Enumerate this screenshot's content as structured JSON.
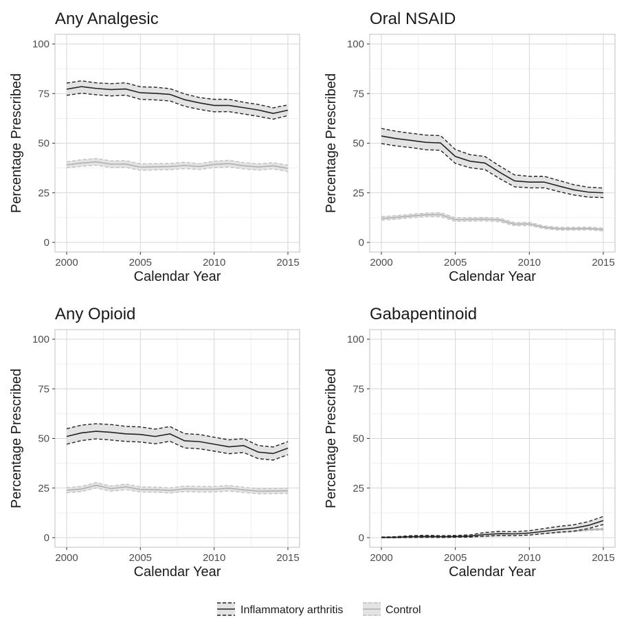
{
  "chart_data": [
    {
      "type": "line",
      "title": "Any Analgesic",
      "xlabel": "Calendar Year",
      "ylabel": "Percentage Prescribed",
      "xlim": [
        2000,
        2015
      ],
      "ylim": [
        0,
        100
      ],
      "xticks": [
        2000,
        2005,
        2010,
        2015
      ],
      "yticks": [
        0,
        25,
        50,
        75,
        100
      ],
      "x": [
        2000,
        2001,
        2002,
        2003,
        2004,
        2005,
        2006,
        2007,
        2008,
        2009,
        2010,
        2011,
        2012,
        2013,
        2014,
        2015
      ],
      "grid": true,
      "series": [
        {
          "name": "Inflammatory arthritis",
          "values": [
            77.2,
            78.5,
            77.6,
            77.0,
            77.3,
            75.4,
            75.1,
            74.6,
            71.9,
            70.3,
            69.0,
            69.0,
            67.9,
            66.7,
            65.0,
            66.6
          ],
          "lower": [
            74.1,
            75.2,
            74.4,
            73.8,
            74.2,
            72.1,
            71.8,
            71.3,
            68.6,
            67.0,
            65.8,
            65.9,
            64.7,
            63.5,
            62.1,
            63.9
          ],
          "upper": [
            80.3,
            81.4,
            80.4,
            80.0,
            80.4,
            78.4,
            78.2,
            77.5,
            74.8,
            73.0,
            72.1,
            72.1,
            70.6,
            69.5,
            67.8,
            69.3
          ]
        },
        {
          "name": "Control",
          "values": [
            39.1,
            40.0,
            40.6,
            39.4,
            39.5,
            37.9,
            38.1,
            38.2,
            38.8,
            38.2,
            39.3,
            39.7,
            38.6,
            38.0,
            38.6,
            37.3
          ],
          "lower": [
            37.6,
            38.3,
            38.9,
            37.7,
            37.8,
            36.3,
            36.5,
            36.6,
            37.2,
            36.7,
            37.7,
            38.0,
            37.0,
            36.4,
            37.0,
            35.7
          ],
          "upper": [
            40.6,
            41.7,
            42.3,
            41.1,
            41.2,
            39.6,
            39.7,
            39.8,
            40.4,
            39.7,
            40.9,
            41.4,
            40.2,
            39.6,
            40.2,
            38.9
          ]
        }
      ]
    },
    {
      "type": "line",
      "title": "Oral NSAID",
      "xlabel": "Calendar Year",
      "ylabel": "Percentage Prescribed",
      "xlim": [
        2000,
        2015
      ],
      "ylim": [
        0,
        100
      ],
      "xticks": [
        2000,
        2005,
        2010,
        2015
      ],
      "yticks": [
        0,
        25,
        50,
        75,
        100
      ],
      "x": [
        2000,
        2001,
        2002,
        2003,
        2004,
        2005,
        2006,
        2007,
        2008,
        2009,
        2010,
        2011,
        2012,
        2013,
        2014,
        2015
      ],
      "grid": true,
      "series": [
        {
          "name": "Inflammatory arthritis",
          "values": [
            53.6,
            52.3,
            51.4,
            50.4,
            50.1,
            43.3,
            40.9,
            40.0,
            35.3,
            31.0,
            30.4,
            30.4,
            28.4,
            26.5,
            25.3,
            25.0
          ],
          "lower": [
            49.8,
            48.6,
            47.8,
            46.7,
            46.4,
            39.8,
            37.6,
            36.7,
            32.1,
            28.0,
            27.5,
            27.5,
            25.6,
            23.9,
            22.8,
            22.6
          ],
          "upper": [
            57.4,
            56.0,
            55.0,
            54.1,
            53.8,
            46.8,
            44.2,
            43.3,
            38.5,
            34.0,
            33.3,
            33.3,
            31.2,
            29.1,
            27.8,
            27.4
          ]
        },
        {
          "name": "Control",
          "values": [
            12.1,
            12.6,
            13.3,
            13.9,
            14.0,
            11.5,
            11.6,
            11.7,
            11.3,
            9.2,
            9.3,
            7.6,
            6.9,
            6.9,
            7.0,
            6.5
          ],
          "lower": [
            11.2,
            11.7,
            12.4,
            13.0,
            13.0,
            10.6,
            10.7,
            10.8,
            10.4,
            8.4,
            8.5,
            6.9,
            6.2,
            6.2,
            6.3,
            5.8
          ],
          "upper": [
            13.0,
            13.5,
            14.2,
            14.8,
            15.0,
            12.4,
            12.5,
            12.6,
            12.2,
            10.0,
            10.1,
            8.3,
            7.6,
            7.6,
            7.7,
            7.2
          ]
        }
      ]
    },
    {
      "type": "line",
      "title": "Any Opioid",
      "xlabel": "Calendar Year",
      "ylabel": "Percentage Prescribed",
      "xlim": [
        2000,
        2015
      ],
      "ylim": [
        0,
        100
      ],
      "xticks": [
        2000,
        2005,
        2010,
        2015
      ],
      "yticks": [
        0,
        25,
        50,
        75,
        100
      ],
      "x": [
        2000,
        2001,
        2002,
        2003,
        2004,
        2005,
        2006,
        2007,
        2008,
        2009,
        2010,
        2011,
        2012,
        2013,
        2014,
        2015
      ],
      "grid": true,
      "series": [
        {
          "name": "Inflammatory arthritis",
          "values": [
            51.0,
            52.8,
            53.6,
            53.1,
            52.3,
            52.0,
            51.0,
            52.3,
            48.8,
            48.4,
            47.1,
            45.8,
            46.4,
            43.1,
            42.4,
            45.1
          ],
          "lower": [
            47.1,
            48.9,
            49.8,
            49.2,
            48.5,
            48.2,
            47.3,
            48.6,
            45.2,
            44.8,
            43.6,
            42.3,
            42.9,
            39.8,
            39.1,
            41.8
          ],
          "upper": [
            54.9,
            56.7,
            57.4,
            57.0,
            56.1,
            55.8,
            54.7,
            56.0,
            52.4,
            52.0,
            50.6,
            49.3,
            49.9,
            46.4,
            45.7,
            48.4
          ]
        },
        {
          "name": "Control",
          "values": [
            23.9,
            24.5,
            26.4,
            24.7,
            25.6,
            24.3,
            24.2,
            23.8,
            24.6,
            24.4,
            24.4,
            24.9,
            24.1,
            23.4,
            23.5,
            23.6
          ],
          "lower": [
            22.6,
            23.2,
            25.0,
            23.4,
            24.2,
            23.0,
            22.9,
            22.5,
            23.2,
            23.0,
            23.0,
            23.5,
            22.8,
            22.1,
            22.2,
            22.3
          ],
          "upper": [
            25.2,
            25.8,
            27.8,
            26.0,
            27.0,
            25.6,
            25.5,
            25.1,
            26.0,
            25.8,
            25.8,
            26.3,
            25.4,
            24.7,
            24.8,
            24.9
          ]
        }
      ]
    },
    {
      "type": "line",
      "title": "Gabapentinoid",
      "xlabel": "Calendar Year",
      "ylabel": "Percentage Prescribed",
      "xlim": [
        2000,
        2015
      ],
      "ylim": [
        0,
        100
      ],
      "xticks": [
        2000,
        2005,
        2010,
        2015
      ],
      "yticks": [
        0,
        25,
        50,
        75,
        100
      ],
      "x": [
        2000,
        2001,
        2002,
        2003,
        2004,
        2005,
        2006,
        2007,
        2008,
        2009,
        2010,
        2011,
        2012,
        2013,
        2014,
        2015
      ],
      "grid": true,
      "series": [
        {
          "name": "Inflammatory arthritis",
          "values": [
            0.1,
            0.2,
            0.5,
            0.6,
            0.5,
            0.6,
            0.8,
            1.6,
            2.0,
            1.9,
            2.3,
            3.2,
            4.1,
            4.8,
            6.2,
            8.6
          ],
          "lower": [
            0.0,
            0.0,
            0.1,
            0.2,
            0.1,
            0.2,
            0.3,
            0.8,
            1.1,
            1.0,
            1.3,
            2.1,
            2.8,
            3.3,
            4.6,
            6.6
          ],
          "upper": [
            0.3,
            0.5,
            1.0,
            1.2,
            1.0,
            1.1,
            1.4,
            2.6,
            3.2,
            3.0,
            3.5,
            4.6,
            5.7,
            6.5,
            8.1,
            10.7
          ]
        },
        {
          "name": "Control",
          "values": [
            0.0,
            0.0,
            0.1,
            0.1,
            0.2,
            0.2,
            0.5,
            0.8,
            1.1,
            1.2,
            1.6,
            2.2,
            2.8,
            3.3,
            4.0,
            4.3
          ],
          "lower": [
            0.0,
            0.0,
            0.0,
            0.0,
            0.1,
            0.1,
            0.3,
            0.6,
            0.9,
            1.0,
            1.3,
            1.9,
            2.4,
            2.9,
            3.6,
            3.8
          ],
          "upper": [
            0.1,
            0.1,
            0.2,
            0.2,
            0.3,
            0.3,
            0.7,
            1.0,
            1.3,
            1.5,
            1.9,
            2.5,
            3.2,
            3.7,
            4.5,
            4.8
          ]
        }
      ]
    }
  ],
  "legend": {
    "placement": "bottom",
    "items": [
      {
        "label": "Inflammatory arthritis",
        "line_color": "#222222",
        "ci_color": "#222222",
        "band_color": "#e3e3e3"
      },
      {
        "label": "Control",
        "line_color": "#b0b0b0",
        "ci_color": "#c2c2c2",
        "band_color": "#e3e3e3"
      }
    ]
  },
  "colors": {
    "inflammatory_line": "#222222",
    "control_line": "#b0b0b0",
    "ci_band": "#e3e3e3",
    "grid_major": "#d6d6d6",
    "grid_minor": "#ececec",
    "panel_border": "#bfbfbf",
    "text": "#1a1a1a",
    "tick_text": "#4d4d4d"
  }
}
